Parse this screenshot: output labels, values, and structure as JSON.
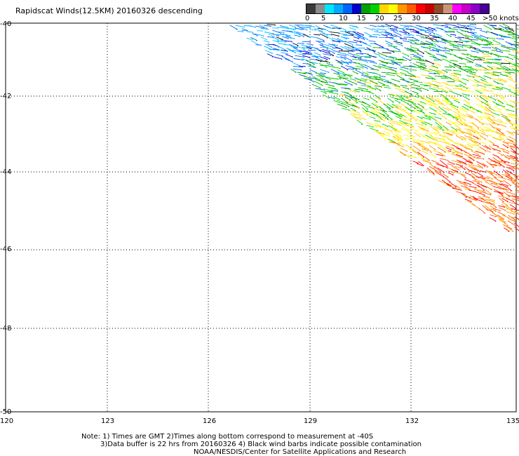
{
  "title": "Rapidscat Winds(12.5KM) 20160326 descending",
  "legend": {
    "colors": [
      "#3a3a3a",
      "#8c8c8c",
      "#00e6ff",
      "#00aaff",
      "#0064ff",
      "#0000c8",
      "#00a000",
      "#00d200",
      "#ffd700",
      "#ffff00",
      "#ff9600",
      "#ff5a00",
      "#ff0000",
      "#c80000",
      "#8c4b28",
      "#c89678",
      "#ff00ff",
      "#c800c8",
      "#8c00c8",
      "#460096"
    ],
    "labels": [
      "0",
      "5",
      "10",
      "15",
      "20",
      "25",
      "30",
      "35",
      "40",
      "45",
      ">50 knots"
    ]
  },
  "axes": {
    "x_ticks": [
      "120",
      "123",
      "126",
      "129",
      "132",
      "135"
    ],
    "y_ticks": [
      "-40",
      "-42",
      "-44",
      "-46",
      "-48",
      "-50"
    ]
  },
  "notes": {
    "line1": "Note: 1) Times are GMT 2)Times along bottom correspond to measurement at -40S",
    "line2": "3)Data buffer is 22 hrs from 20160326 4) Black wind barbs indicate possible contamination",
    "line3": "NOAA/NESDIS/Center for Satellite Applications and Research"
  }
}
